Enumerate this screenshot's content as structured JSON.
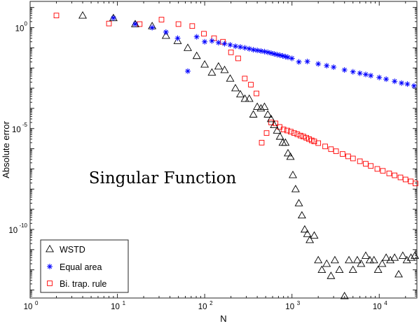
{
  "chart_data": {
    "type": "scatter",
    "title": "",
    "annotation": "Singular Function",
    "xlabel": "N",
    "ylabel": "Absolute error",
    "xscale": "log",
    "yscale": "log",
    "xlim": [
      1,
      27000
    ],
    "ylim": [
      4e-14,
      20
    ],
    "x_ticks": [
      {
        "value": 1,
        "base": "10",
        "exp": "0"
      },
      {
        "value": 10,
        "base": "10",
        "exp": "1"
      },
      {
        "value": 100,
        "base": "10",
        "exp": "2"
      },
      {
        "value": 1000,
        "base": "10",
        "exp": "3"
      },
      {
        "value": 10000,
        "base": "10",
        "exp": "4"
      }
    ],
    "y_ticks": [
      {
        "value": 1,
        "base": "10",
        "exp": "0"
      },
      {
        "value": 1e-05,
        "base": "10",
        "exp": "-5"
      },
      {
        "value": 1e-10,
        "base": "10",
        "exp": "-10"
      }
    ],
    "grid": false,
    "legend_position": "bottom-left",
    "colors": {
      "WSTD": "#000000",
      "Equal area": "#0000ff",
      "Bi. trap. rule": "#ff0000"
    },
    "series": [
      {
        "name": "WSTD",
        "marker": "triangle",
        "x": [
          4,
          9,
          16,
          25,
          36,
          49,
          64,
          81,
          100,
          121,
          144,
          169,
          196,
          225,
          256,
          289,
          324,
          361,
          400,
          441,
          484,
          529,
          576,
          625,
          676,
          729,
          784,
          841,
          900,
          961,
          1024,
          1100,
          1200,
          1300,
          1400,
          1500,
          1600,
          1800,
          2000,
          2200,
          2500,
          2800,
          3100,
          3500,
          4000,
          4500,
          5000,
          5600,
          6200,
          7000,
          7800,
          8700,
          9700,
          10800,
          12000,
          13400,
          15000,
          16700,
          18600,
          20700,
          23100,
          25600
        ],
        "y": [
          4.0,
          3.0,
          1.5,
          1.2,
          0.4,
          0.22,
          0.1,
          0.04,
          0.015,
          0.006,
          0.012,
          0.008,
          0.003,
          0.001,
          0.0005,
          0.0003,
          0.0003,
          5e-05,
          0.00012,
          0.0001,
          0.00012,
          5e-05,
          3e-05,
          1.5e-05,
          8e-06,
          4e-06,
          2e-06,
          2e-06,
          6e-07,
          4e-07,
          5e-08,
          1e-08,
          2e-09,
          5e-10,
          1e-10,
          6e-11,
          3e-11,
          5e-11,
          3e-12,
          1e-12,
          2e-12,
          5e-13,
          3e-12,
          1e-12,
          5e-14,
          3e-12,
          1e-12,
          3e-12,
          2e-12,
          5e-12,
          3e-12,
          3e-12,
          1e-12,
          2e-12,
          4e-12,
          3e-12,
          4e-12,
          6e-13,
          5e-12,
          3e-12,
          4e-12,
          5e-12
        ]
      },
      {
        "name": "Equal area",
        "marker": "asterisk",
        "x": [
          9,
          16,
          25,
          36,
          49,
          64,
          81,
          100,
          121,
          144,
          169,
          196,
          225,
          256,
          289,
          324,
          361,
          400,
          441,
          484,
          529,
          576,
          625,
          676,
          729,
          784,
          841,
          900,
          1000,
          1200,
          1500,
          2000,
          2500,
          3000,
          4000,
          5000,
          6000,
          7000,
          8000,
          10000,
          12000,
          15000,
          18000,
          21000,
          25000
        ],
        "y": [
          3.0,
          1.5,
          1.0,
          0.6,
          0.3,
          0.007,
          0.35,
          0.2,
          0.22,
          0.18,
          0.16,
          0.14,
          0.12,
          0.11,
          0.1,
          0.09,
          0.08,
          0.075,
          0.07,
          0.065,
          0.06,
          0.055,
          0.05,
          0.046,
          0.043,
          0.04,
          0.037,
          0.034,
          0.03,
          0.02,
          0.021,
          0.016,
          0.013,
          0.011,
          0.008,
          0.0065,
          0.0055,
          0.0048,
          0.0042,
          0.0034,
          0.0028,
          0.0022,
          0.0018,
          0.0016,
          0.0013
        ]
      },
      {
        "name": "Bi. trap. rule",
        "marker": "square",
        "x": [
          2,
          8,
          18,
          32,
          50,
          72,
          98,
          128,
          162,
          200,
          242,
          288,
          338,
          392,
          450,
          512,
          578,
          648,
          722,
          800,
          882,
          968,
          1058,
          1152,
          1250,
          1352,
          1458,
          1568,
          1682,
          1800,
          2000,
          2400,
          2800,
          3200,
          3800,
          4400,
          5000,
          6000,
          7000,
          8000,
          9500,
          11000,
          13000,
          15000,
          17500,
          20000,
          23000,
          26000
        ],
        "y": [
          4.0,
          1.6,
          1.5,
          2.5,
          1.5,
          1.2,
          0.5,
          0.3,
          0.2,
          0.06,
          0.03,
          0.003,
          0.0015,
          0.00055,
          2e-06,
          6e-06,
          2e-05,
          1.8e-05,
          1.2e-05,
          9e-06,
          8e-06,
          7e-06,
          6e-06,
          5.2e-06,
          4.5e-06,
          4e-06,
          3.5e-06,
          3e-06,
          2.6e-06,
          2.3e-06,
          1.9e-06,
          1.3e-06,
          9.5e-07,
          7.5e-07,
          5.5e-07,
          4.2e-07,
          3.3e-07,
          2.4e-07,
          1.8e-07,
          1.4e-07,
          1e-07,
          8e-08,
          6e-08,
          4.8e-08,
          3.8e-08,
          3e-08,
          2.4e-08,
          1.9e-08
        ]
      }
    ]
  }
}
